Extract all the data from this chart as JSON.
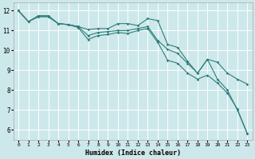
{
  "bg_color": "#cde8ea",
  "grid_color": "#ffffff",
  "line_color": "#2e7d7a",
  "xlabel": "Humidex (Indice chaleur)",
  "xlim": [
    -0.5,
    23.5
  ],
  "ylim": [
    5.5,
    12.4
  ],
  "yticks": [
    6,
    7,
    8,
    9,
    10,
    11,
    12
  ],
  "xticks": [
    0,
    1,
    2,
    3,
    4,
    5,
    6,
    7,
    8,
    9,
    10,
    11,
    12,
    13,
    14,
    15,
    16,
    17,
    18,
    19,
    20,
    21,
    22,
    23
  ],
  "series": [
    {
      "x": [
        0,
        1,
        2,
        3,
        4,
        5,
        6,
        7,
        8,
        9,
        10,
        11,
        12,
        13,
        14,
        15,
        16,
        17,
        18,
        19,
        20,
        21,
        22,
        23
      ],
      "y": [
        12.0,
        11.45,
        11.75,
        11.75,
        11.35,
        11.3,
        11.2,
        11.05,
        11.1,
        11.1,
        11.35,
        11.35,
        11.25,
        11.6,
        11.5,
        10.3,
        10.15,
        9.45,
        8.85,
        9.55,
        8.55,
        8.0,
        7.0,
        5.8
      ]
    },
    {
      "x": [
        0,
        1,
        2,
        3,
        4,
        5,
        6,
        7,
        8,
        9,
        10,
        11,
        12,
        13,
        14,
        15,
        16,
        17,
        18,
        19,
        20,
        21,
        22,
        23
      ],
      "y": [
        12.0,
        11.45,
        11.7,
        11.7,
        11.35,
        11.3,
        11.2,
        10.75,
        10.9,
        10.95,
        11.0,
        11.0,
        11.1,
        11.2,
        10.5,
        10.05,
        9.85,
        9.35,
        8.85,
        9.55,
        9.4,
        8.85,
        8.55,
        8.3
      ]
    },
    {
      "x": [
        0,
        1,
        2,
        3,
        4,
        5,
        6,
        7,
        8,
        9,
        10,
        11,
        12,
        13,
        14,
        15,
        16,
        17,
        18,
        19,
        20,
        21,
        22,
        23
      ],
      "y": [
        12.0,
        11.45,
        11.7,
        11.7,
        11.35,
        11.3,
        11.15,
        10.55,
        10.75,
        10.8,
        10.9,
        10.85,
        11.0,
        11.1,
        10.4,
        9.5,
        9.35,
        8.85,
        8.55,
        8.75,
        8.35,
        7.85,
        7.05,
        5.8
      ]
    }
  ]
}
